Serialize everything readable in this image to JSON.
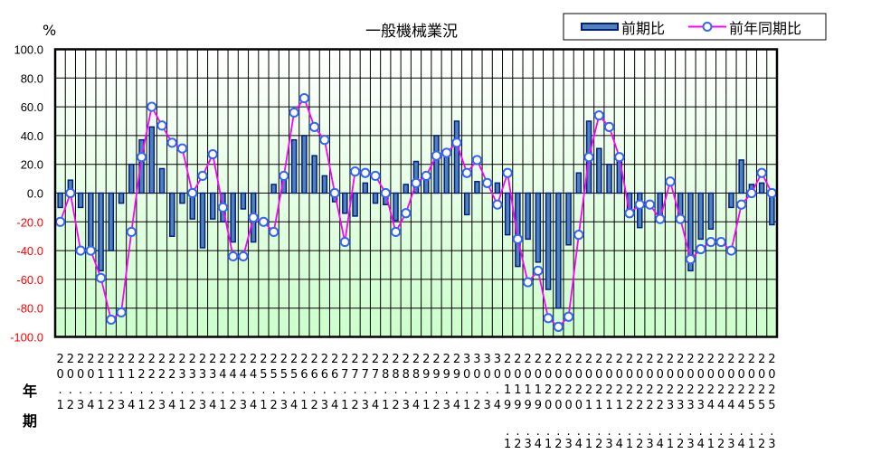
{
  "chart_data": {
    "type": "bar+line",
    "title": "一般機械業況",
    "ylabel": "%",
    "ylim": [
      -100,
      100
    ],
    "yticks": [
      100,
      80,
      60,
      40,
      20,
      0,
      -20,
      -40,
      -60,
      -80,
      -100
    ],
    "ytick_labels": [
      "100.0",
      "80.0",
      "60.0",
      "40.0",
      "20.0",
      "0.0",
      "-20.0",
      "-40.0",
      "-60.0",
      "-80.0",
      "-100.0"
    ],
    "x_row_labels": [
      "年",
      "期"
    ],
    "grid": true,
    "legend_position": "top-right",
    "categories": [
      "20.1",
      "20.2",
      "20.3",
      "20.4",
      "21.1",
      "21.2",
      "21.3",
      "21.4",
      "22.1",
      "22.2",
      "22.3",
      "22.4",
      "23.1",
      "23.2",
      "23.3",
      "23.4",
      "24.1",
      "24.2",
      "24.3",
      "24.4",
      "25.1",
      "25.2",
      "25.3",
      "25.4",
      "26.1",
      "26.2",
      "26.3",
      "26.4",
      "27.1",
      "27.2",
      "27.3",
      "27.4",
      "28.1",
      "28.2",
      "28.3",
      "28.4",
      "29.1",
      "29.2",
      "29.3",
      "29.4",
      "30.1",
      "30.2",
      "30.3",
      "30.4",
      "2019.1",
      "2019.2",
      "2019.3",
      "2019.4",
      "2020.1",
      "2020.2",
      "2020.3",
      "2020.4",
      "2021.1",
      "2021.2",
      "2021.3",
      "2021.4",
      "2022.1",
      "2022.2",
      "2022.3",
      "2022.4",
      "2023.1",
      "2023.2",
      "2023.3",
      "2023.4",
      "2024.1",
      "2024.2",
      "2024.3",
      "2024.4",
      "2025.1",
      "2025.2",
      "2025.3"
    ],
    "series": [
      {
        "name": "前期比",
        "type": "bar",
        "color": "#4f81bd",
        "edge_color": "#001f7f",
        "values": [
          -10,
          9,
          -10,
          -40,
          -54,
          -40,
          -7,
          20,
          37,
          46,
          17,
          -30,
          -7,
          -18,
          -38,
          -18,
          -20,
          -34,
          -11,
          -34,
          0,
          6,
          10,
          37,
          40,
          26,
          12,
          -6,
          -14,
          -16,
          7,
          -7,
          -8,
          -19,
          6,
          22,
          12,
          40,
          30,
          50,
          -15,
          8,
          0,
          7,
          -29,
          -51,
          -32,
          -48,
          -67,
          -80,
          -36,
          14,
          50,
          31,
          20,
          22,
          -12,
          -24,
          0,
          -16,
          0,
          -19,
          -54,
          -32,
          -25,
          0,
          -10,
          23,
          6,
          7,
          -22
        ]
      },
      {
        "name": "前年同期比",
        "type": "line",
        "color": "#ff00ff",
        "marker_edge": "#3366ff",
        "marker_fill": "#ffffff",
        "values": [
          -20,
          0,
          -40,
          -40,
          -59,
          -88,
          -83,
          -27,
          25,
          60,
          47,
          35,
          31,
          0,
          12,
          27,
          -10,
          -44,
          -44,
          -17,
          -20,
          -27,
          12,
          56,
          66,
          46,
          37,
          0,
          -34,
          15,
          14,
          12,
          0,
          -27,
          -14,
          7,
          12,
          26,
          28,
          35,
          14,
          23,
          7,
          -8,
          14,
          -32,
          -62,
          -54,
          -87,
          -93,
          -86,
          -29,
          25,
          54,
          46,
          25,
          -14,
          -8,
          -8,
          -18,
          8,
          -18,
          -46,
          -39,
          -34,
          -34,
          -40,
          -8,
          0,
          14,
          0
        ]
      }
    ]
  },
  "legend": {
    "bar_label": "前期比",
    "line_label": "前年同期比"
  },
  "axis": {
    "unit": "%",
    "year_label": "年",
    "period_label": "期"
  },
  "colors": {
    "bg_top": "#ffffff",
    "bg_bottom": "#ccffcc",
    "negative_tick": "#ff0000",
    "positive_tick": "#000000"
  }
}
